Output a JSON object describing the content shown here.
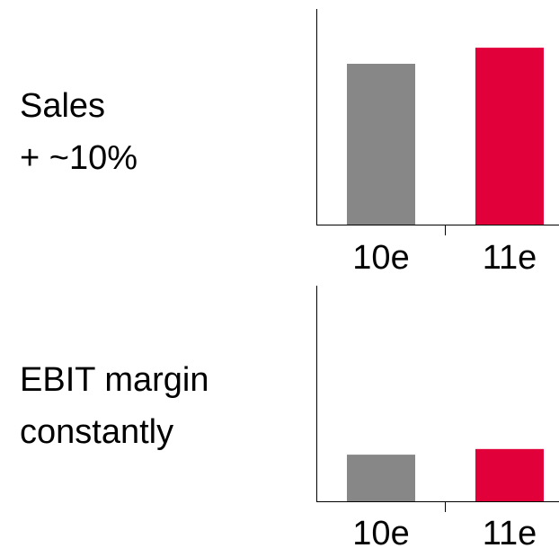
{
  "panels": [
    {
      "label_lines": [
        "Sales",
        "+ ~10%"
      ]
    },
    {
      "label_lines": [
        "EBIT margin",
        "constantly"
      ]
    }
  ],
  "colors": {
    "prior": "#878787",
    "current": "#e2003a",
    "axis": "#000000"
  },
  "chart_data": [
    {
      "type": "bar",
      "categories": [
        "10e",
        "11e"
      ],
      "values": [
        100,
        110
      ],
      "ylim": [
        0,
        125
      ],
      "title": "",
      "xlabel": "",
      "ylabel": "",
      "grid": false,
      "legend": "none"
    },
    {
      "type": "bar",
      "categories": [
        "10e",
        "11e"
      ],
      "values": [
        29,
        32.5
      ],
      "ylim": [
        0,
        125
      ],
      "title": "",
      "xlabel": "",
      "ylabel": "",
      "grid": false,
      "legend": "none"
    }
  ]
}
